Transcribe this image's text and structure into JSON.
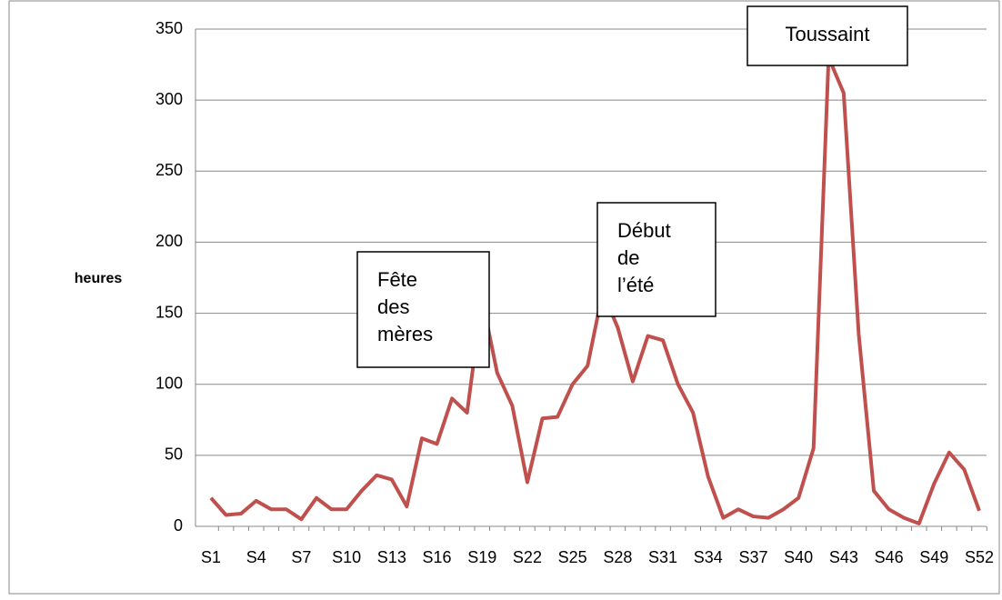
{
  "chart_data": {
    "type": "line",
    "y_label": "heures",
    "categories": [
      "S1",
      null,
      null,
      "S4",
      null,
      null,
      "S7",
      null,
      null,
      "S10",
      null,
      null,
      "S13",
      null,
      null,
      "S16",
      null,
      null,
      "S19",
      null,
      null,
      "S22",
      null,
      null,
      "S25",
      null,
      null,
      "S28",
      null,
      null,
      "S31",
      null,
      null,
      "S34",
      null,
      null,
      "S37",
      null,
      null,
      "S40",
      null,
      null,
      "S43",
      null,
      null,
      "S46",
      null,
      null,
      "S49",
      null,
      null,
      "S52"
    ],
    "series": [
      {
        "color": "#c0504d",
        "values": [
          20,
          8,
          9,
          18,
          12,
          12,
          5,
          20,
          12,
          12,
          25,
          36,
          33,
          14,
          62,
          58,
          90,
          80,
          160,
          108,
          85,
          31,
          76,
          77,
          100,
          113,
          165,
          140,
          102,
          134,
          131,
          100,
          80,
          35,
          6,
          12,
          7,
          6,
          12,
          20,
          55,
          330,
          305,
          135,
          25,
          12,
          6,
          2,
          30,
          52,
          40,
          11
        ]
      }
    ],
    "ylim": [
      0,
      350
    ],
    "yticks": [
      0,
      50,
      100,
      150,
      200,
      250,
      300,
      350
    ],
    "grid": true,
    "annotations": [
      {
        "lines": [
          "Fête",
          "des",
          "mères"
        ]
      },
      {
        "lines": [
          "Début",
          "de",
          "l’été"
        ]
      },
      {
        "lines": [
          "Toussaint"
        ]
      }
    ]
  }
}
